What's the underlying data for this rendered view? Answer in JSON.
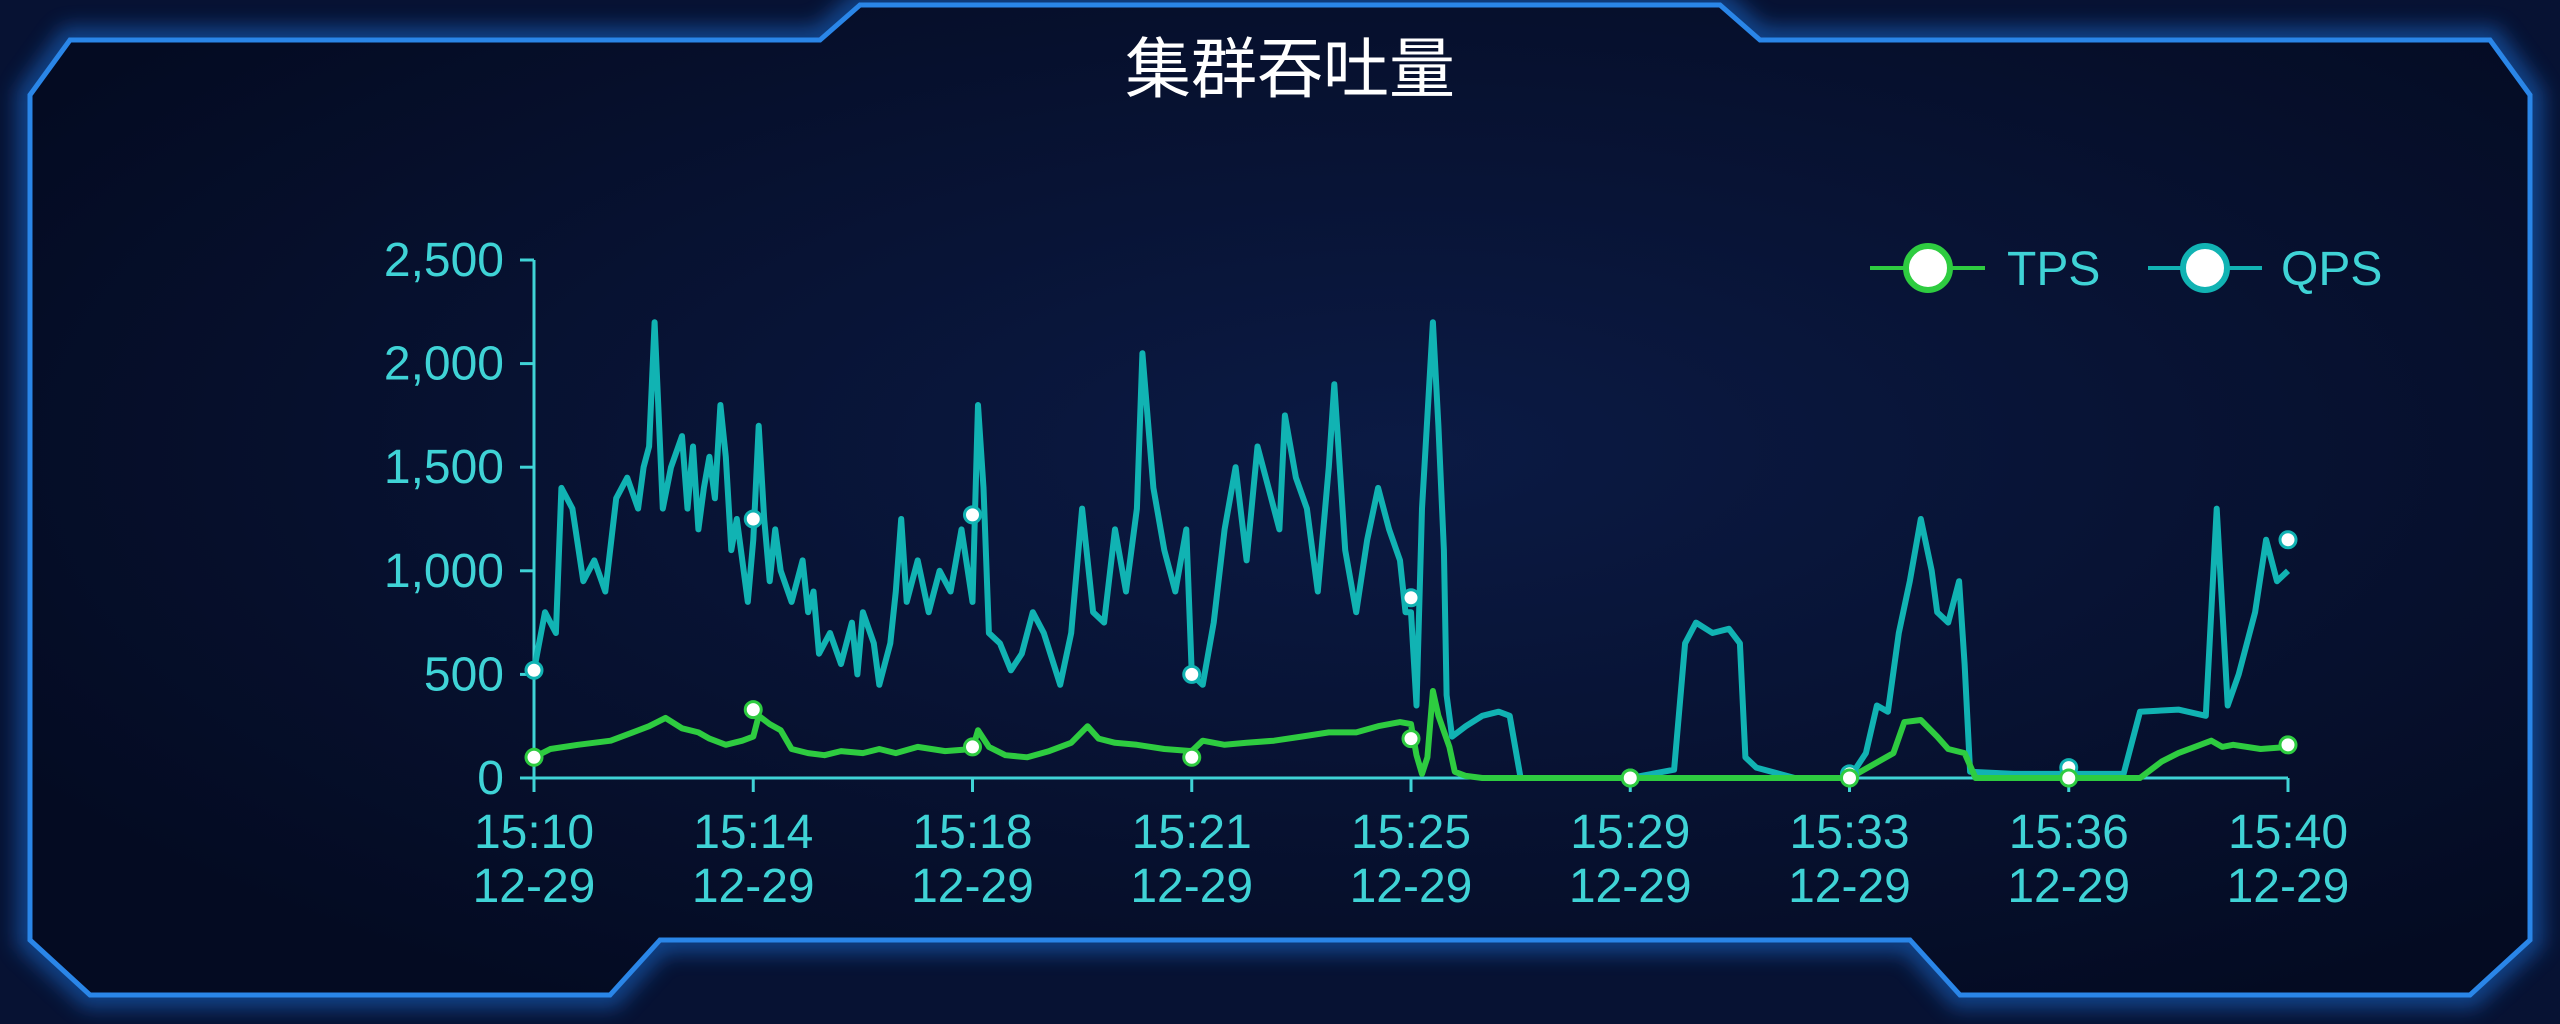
{
  "chart_data": {
    "type": "line",
    "title": "集群吞吐量",
    "xlabel": "",
    "ylabel": "",
    "ylim": [
      0,
      2500
    ],
    "yticks": [
      "0",
      "500",
      "1,000",
      "1,500",
      "2,000",
      "2,500"
    ],
    "yticks_values": [
      0,
      500,
      1000,
      1500,
      2000,
      2500
    ],
    "xlim_minutes": [
      0,
      30
    ],
    "x_ticks": [
      {
        "time": "15:10",
        "date": "12-29"
      },
      {
        "time": "15:14",
        "date": "12-29"
      },
      {
        "time": "15:18",
        "date": "12-29"
      },
      {
        "time": "15:21",
        "date": "12-29"
      },
      {
        "time": "15:25",
        "date": "12-29"
      },
      {
        "time": "15:29",
        "date": "12-29"
      },
      {
        "time": "15:33",
        "date": "12-29"
      },
      {
        "time": "15:36",
        "date": "12-29"
      },
      {
        "time": "15:40",
        "date": "12-29"
      }
    ],
    "legend_position": "top-right",
    "grid": false,
    "series": [
      {
        "name": "TPS",
        "color": "#2ecc40",
        "points": [
          [
            0,
            100
          ],
          [
            0.3,
            140
          ],
          [
            0.8,
            160
          ],
          [
            1.4,
            180
          ],
          [
            1.8,
            220
          ],
          [
            2.1,
            250
          ],
          [
            2.4,
            290
          ],
          [
            2.7,
            240
          ],
          [
            3.0,
            220
          ],
          [
            3.2,
            190
          ],
          [
            3.5,
            160
          ],
          [
            3.8,
            180
          ],
          [
            4.0,
            200
          ],
          [
            4.1,
            300
          ],
          [
            4.3,
            260
          ],
          [
            4.5,
            230
          ],
          [
            4.7,
            140
          ],
          [
            5.0,
            120
          ],
          [
            5.3,
            110
          ],
          [
            5.6,
            130
          ],
          [
            6.0,
            120
          ],
          [
            6.3,
            140
          ],
          [
            6.6,
            120
          ],
          [
            7.0,
            150
          ],
          [
            7.5,
            130
          ],
          [
            8.0,
            140
          ],
          [
            8.1,
            230
          ],
          [
            8.3,
            150
          ],
          [
            8.6,
            110
          ],
          [
            9.0,
            100
          ],
          [
            9.4,
            130
          ],
          [
            9.8,
            170
          ],
          [
            10.1,
            250
          ],
          [
            10.3,
            190
          ],
          [
            10.6,
            170
          ],
          [
            11.0,
            160
          ],
          [
            11.5,
            140
          ],
          [
            12.0,
            130
          ],
          [
            12.2,
            180
          ],
          [
            12.6,
            160
          ],
          [
            13.0,
            170
          ],
          [
            13.5,
            180
          ],
          [
            14.0,
            200
          ],
          [
            14.5,
            220
          ],
          [
            15.0,
            220
          ],
          [
            15.4,
            250
          ],
          [
            15.8,
            270
          ],
          [
            16.0,
            260
          ],
          [
            16.1,
            110
          ],
          [
            16.2,
            20
          ],
          [
            16.3,
            100
          ],
          [
            16.4,
            420
          ],
          [
            16.5,
            300
          ],
          [
            16.7,
            150
          ],
          [
            16.8,
            30
          ],
          [
            17.0,
            10
          ],
          [
            17.3,
            0
          ],
          [
            18.0,
            0
          ],
          [
            19.0,
            0
          ],
          [
            20.0,
            0
          ],
          [
            21.0,
            0
          ],
          [
            22.0,
            0
          ],
          [
            23.0,
            0
          ],
          [
            24.0,
            0
          ],
          [
            24.8,
            120
          ],
          [
            25.0,
            270
          ],
          [
            25.3,
            280
          ],
          [
            25.6,
            200
          ],
          [
            25.8,
            140
          ],
          [
            26.1,
            120
          ],
          [
            26.3,
            0
          ],
          [
            27.0,
            0
          ],
          [
            28.0,
            0
          ],
          [
            29.0,
            0
          ],
          [
            29.3,
            0
          ],
          [
            29.7,
            80
          ],
          [
            30.0,
            120
          ],
          [
            30.3,
            150
          ],
          [
            30.6,
            180
          ],
          [
            30.8,
            150
          ],
          [
            31.0,
            160
          ],
          [
            31.5,
            140
          ],
          [
            32.0,
            150
          ]
        ],
        "markers": [
          [
            0,
            100
          ],
          [
            4,
            330
          ],
          [
            8,
            150
          ],
          [
            12,
            100
          ],
          [
            16,
            190
          ],
          [
            20,
            0
          ],
          [
            24,
            0
          ],
          [
            28,
            0
          ],
          [
            32,
            160
          ]
        ]
      },
      {
        "name": "QPS",
        "color": "#11b3b3",
        "points": [
          [
            0,
            520
          ],
          [
            0.2,
            800
          ],
          [
            0.4,
            700
          ],
          [
            0.5,
            1400
          ],
          [
            0.7,
            1300
          ],
          [
            0.9,
            950
          ],
          [
            1.1,
            1050
          ],
          [
            1.3,
            900
          ],
          [
            1.5,
            1350
          ],
          [
            1.7,
            1450
          ],
          [
            1.9,
            1300
          ],
          [
            2.0,
            1500
          ],
          [
            2.1,
            1600
          ],
          [
            2.2,
            2200
          ],
          [
            2.35,
            1300
          ],
          [
            2.5,
            1500
          ],
          [
            2.7,
            1650
          ],
          [
            2.8,
            1300
          ],
          [
            2.9,
            1600
          ],
          [
            3.0,
            1200
          ],
          [
            3.1,
            1400
          ],
          [
            3.2,
            1550
          ],
          [
            3.3,
            1350
          ],
          [
            3.4,
            1800
          ],
          [
            3.5,
            1550
          ],
          [
            3.6,
            1100
          ],
          [
            3.7,
            1250
          ],
          [
            3.8,
            1050
          ],
          [
            3.9,
            850
          ],
          [
            4.0,
            1150
          ],
          [
            4.1,
            1700
          ],
          [
            4.2,
            1250
          ],
          [
            4.3,
            950
          ],
          [
            4.4,
            1200
          ],
          [
            4.5,
            1000
          ],
          [
            4.7,
            850
          ],
          [
            4.9,
            1050
          ],
          [
            5.0,
            800
          ],
          [
            5.1,
            900
          ],
          [
            5.2,
            600
          ],
          [
            5.4,
            700
          ],
          [
            5.6,
            550
          ],
          [
            5.8,
            750
          ],
          [
            5.9,
            500
          ],
          [
            6.0,
            800
          ],
          [
            6.2,
            650
          ],
          [
            6.3,
            450
          ],
          [
            6.5,
            650
          ],
          [
            6.6,
            900
          ],
          [
            6.7,
            1250
          ],
          [
            6.8,
            850
          ],
          [
            7.0,
            1050
          ],
          [
            7.2,
            800
          ],
          [
            7.4,
            1000
          ],
          [
            7.6,
            900
          ],
          [
            7.8,
            1200
          ],
          [
            8.0,
            850
          ],
          [
            8.1,
            1800
          ],
          [
            8.2,
            1400
          ],
          [
            8.3,
            700
          ],
          [
            8.5,
            650
          ],
          [
            8.7,
            520
          ],
          [
            8.9,
            600
          ],
          [
            9.1,
            800
          ],
          [
            9.3,
            700
          ],
          [
            9.6,
            450
          ],
          [
            9.8,
            700
          ],
          [
            10.0,
            1300
          ],
          [
            10.2,
            800
          ],
          [
            10.4,
            750
          ],
          [
            10.6,
            1200
          ],
          [
            10.8,
            900
          ],
          [
            11.0,
            1300
          ],
          [
            11.1,
            2050
          ],
          [
            11.3,
            1400
          ],
          [
            11.5,
            1100
          ],
          [
            11.7,
            900
          ],
          [
            11.9,
            1200
          ],
          [
            12.0,
            500
          ],
          [
            12.2,
            450
          ],
          [
            12.4,
            750
          ],
          [
            12.6,
            1200
          ],
          [
            12.8,
            1500
          ],
          [
            13.0,
            1050
          ],
          [
            13.2,
            1600
          ],
          [
            13.4,
            1400
          ],
          [
            13.6,
            1200
          ],
          [
            13.7,
            1750
          ],
          [
            13.9,
            1450
          ],
          [
            14.1,
            1300
          ],
          [
            14.3,
            900
          ],
          [
            14.5,
            1500
          ],
          [
            14.6,
            1900
          ],
          [
            14.8,
            1100
          ],
          [
            15.0,
            800
          ],
          [
            15.2,
            1150
          ],
          [
            15.4,
            1400
          ],
          [
            15.6,
            1200
          ],
          [
            15.8,
            1050
          ],
          [
            15.9,
            800
          ],
          [
            16.0,
            800
          ],
          [
            16.1,
            350
          ],
          [
            16.2,
            1300
          ],
          [
            16.4,
            2200
          ],
          [
            16.5,
            1700
          ],
          [
            16.6,
            1100
          ],
          [
            16.65,
            400
          ],
          [
            16.75,
            200
          ],
          [
            17.0,
            250
          ],
          [
            17.3,
            300
          ],
          [
            17.6,
            320
          ],
          [
            17.8,
            300
          ],
          [
            18.0,
            0
          ],
          [
            19.0,
            0
          ],
          [
            20.0,
            0
          ],
          [
            20.8,
            40
          ],
          [
            21.0,
            650
          ],
          [
            21.2,
            750
          ],
          [
            21.5,
            700
          ],
          [
            21.8,
            720
          ],
          [
            22.0,
            650
          ],
          [
            22.1,
            100
          ],
          [
            22.3,
            50
          ],
          [
            23.0,
            0
          ],
          [
            24.0,
            0
          ],
          [
            24.3,
            120
          ],
          [
            24.5,
            350
          ],
          [
            24.7,
            320
          ],
          [
            24.9,
            700
          ],
          [
            25.1,
            950
          ],
          [
            25.3,
            1250
          ],
          [
            25.5,
            1000
          ],
          [
            25.6,
            800
          ],
          [
            25.8,
            750
          ],
          [
            26.0,
            950
          ],
          [
            26.1,
            550
          ],
          [
            26.2,
            30
          ],
          [
            27.0,
            20
          ],
          [
            28.0,
            20
          ],
          [
            29.0,
            20
          ],
          [
            29.3,
            320
          ],
          [
            30.0,
            330
          ],
          [
            30.5,
            300
          ],
          [
            30.7,
            1300
          ],
          [
            30.9,
            350
          ],
          [
            31.1,
            500
          ],
          [
            31.4,
            800
          ],
          [
            31.6,
            1150
          ],
          [
            31.8,
            950
          ],
          [
            32.0,
            1000
          ]
        ],
        "markers": [
          [
            0,
            520
          ],
          [
            4,
            1250
          ],
          [
            8,
            1270
          ],
          [
            12,
            500
          ],
          [
            16,
            870
          ],
          [
            20,
            0
          ],
          [
            24,
            20
          ],
          [
            28,
            50
          ],
          [
            32,
            1150
          ]
        ]
      }
    ]
  }
}
